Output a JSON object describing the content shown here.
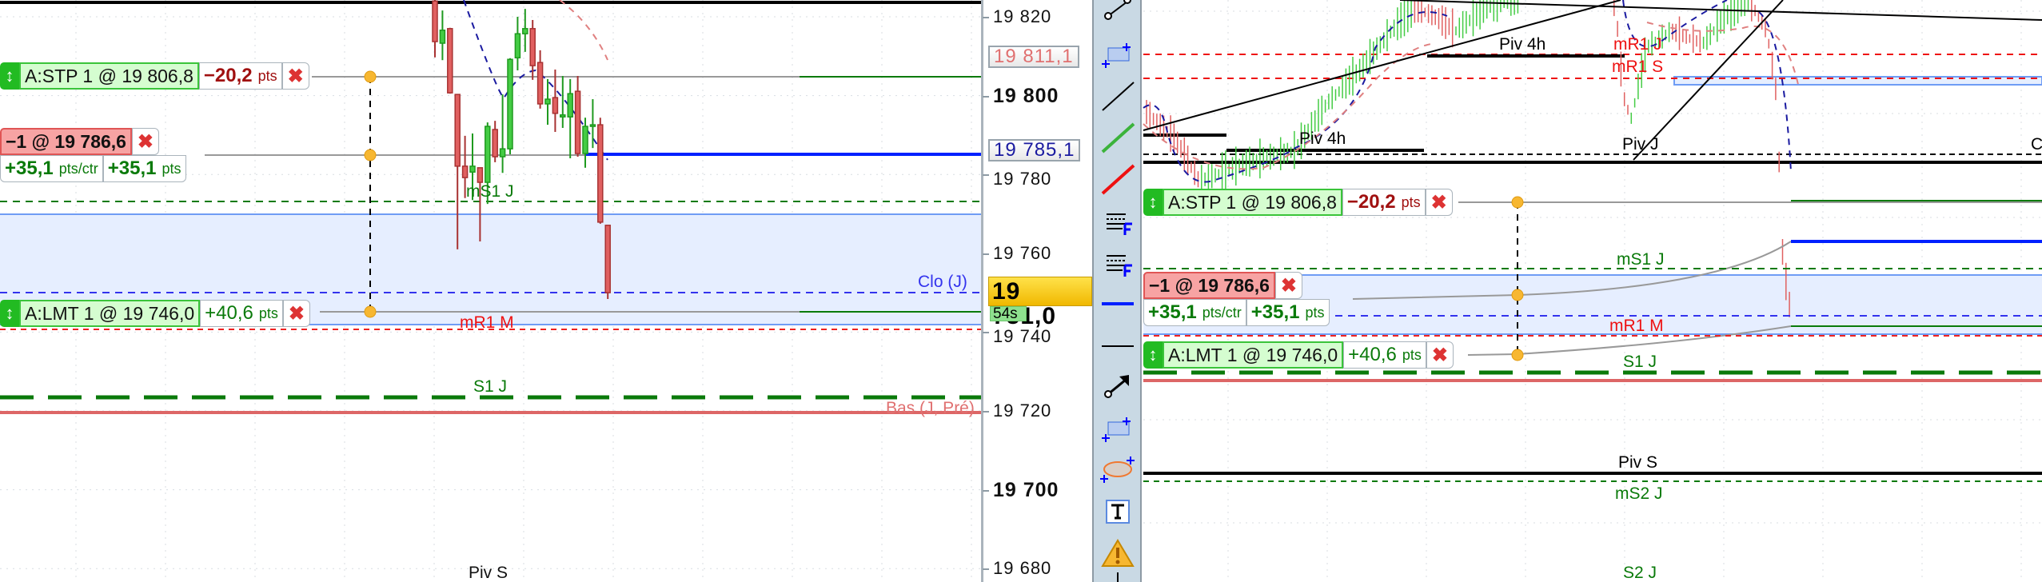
{
  "left_chart": {
    "order_stop": {
      "label": "A:STP  1  @  19 806,8",
      "pnl_value": "−20,2",
      "pnl_unit": "pts"
    },
    "position": {
      "label": "−1  @  19 786,6",
      "pnl_per_contract": "+35,1",
      "pnl_per_contract_unit": "pts/ctr",
      "pnl_total": "+35,1",
      "pnl_total_unit": "pts"
    },
    "order_limit": {
      "label": "A:LMT  1  @  19 746,0",
      "pnl_value": "+40,6",
      "pnl_unit": "pts"
    },
    "levels": {
      "ms1j": "mS1 J",
      "clo": "Clo (J)",
      "mr1m": "mR1 M",
      "s1j": "S1 J",
      "bas": "Bas (J, Pré)",
      "pivs": "Piv S"
    },
    "candles": [
      [
        19824,
        19825,
        19809.7,
        19813.7
      ],
      [
        19813.3,
        19821.6,
        19809,
        19816.6
      ],
      [
        19817,
        19817.2,
        19800.5,
        19800.7
      ],
      [
        19800.3,
        19800.3,
        19761,
        19782.1
      ],
      [
        19782.1,
        19789.8,
        19774,
        19779.2
      ],
      [
        19780.6,
        19790.4,
        19773.5,
        19782.1
      ],
      [
        19781.7,
        19781.7,
        19763,
        19778
      ],
      [
        19778,
        19793.2,
        19772.5,
        19792.2
      ],
      [
        19791.4,
        19793.6,
        19783.1,
        19784.5
      ],
      [
        19784.5,
        19800.3,
        19780.4,
        19786.5
      ],
      [
        19786.5,
        19809.5,
        19785.1,
        19809.2
      ],
      [
        19809.6,
        19820,
        19806.4,
        19815.7
      ],
      [
        19815.7,
        19822,
        19811.1,
        19817
      ],
      [
        19817,
        19819.2,
        19804,
        19807.6
      ],
      [
        19808.4,
        19811.5,
        19796.7,
        19797.9
      ],
      [
        19797.9,
        19804.2,
        19792.6,
        19799.1
      ],
      [
        19799.5,
        19806.6,
        19790.8,
        19795.5
      ],
      [
        19794.6,
        19805,
        19791.8,
        19795.1
      ],
      [
        19794.6,
        19804.2,
        19784.1,
        19800.5
      ],
      [
        19801.1,
        19805,
        19784.5,
        19785.3
      ],
      [
        19785.3,
        19794.4,
        19781.7,
        19792.2
      ],
      [
        19792.4,
        19799.1,
        19786.7,
        19792.6
      ],
      [
        19792.6,
        19794.4,
        19767.5,
        19767.9
      ],
      [
        19767.1,
        19767.1,
        19748.4,
        19750
      ]
    ]
  },
  "price_axis": {
    "ticks": [
      "19 820",
      "19 800",
      "19 780",
      "19 760",
      "19 740",
      "19 720",
      "19 700",
      "19 680"
    ],
    "marker_red": "19 811,1",
    "marker_blue": "19 785,1",
    "last_price": "19 751,0",
    "countdown": "54s"
  },
  "toolbar": {
    "tools": [
      "segment-tool-icon",
      "rectangle-tool-icon",
      "black-line-icon",
      "green-line-icon",
      "red-line-icon",
      "fibonacci-icon",
      "fibonacci-ext-icon",
      "blue-horizontal-line-icon",
      "black-horizontal-line-icon",
      "arrow-tool-icon",
      "zone-tool-icon",
      "ellipse-tool-icon",
      "text-tool-icon",
      "alert-icon"
    ]
  },
  "right_chart": {
    "order_stop": {
      "label": "A:STP  1  @  19 806,8",
      "pnl_value": "−20,2",
      "pnl_unit": "pts"
    },
    "position": {
      "label": "−1  @  19 786,6",
      "pnl_per_contract": "+35,1",
      "pnl_per_contract_unit": "pts/ctr",
      "pnl_total": "+35,1",
      "pnl_total_unit": "pts"
    },
    "order_limit": {
      "label": "A:LMT  1  @  19 746,0",
      "pnl_value": "+40,6",
      "pnl_unit": "pts"
    },
    "levels": {
      "piv4h_a": "Piv 4h",
      "piv4h_b": "Piv 4h",
      "mr1j": "mR1 J",
      "mr1s": "mR1 S",
      "pivj": "Piv J",
      "ms1j": "mS1 J",
      "mr1m": "mR1 M",
      "s1j": "S1 J",
      "pivs": "Piv S",
      "ms2j": "mS2 J",
      "s2j": "S2 J",
      "edge_c": "C"
    }
  },
  "colors": {
    "up": "#22aa22",
    "down": "#d04848",
    "zone": "#e6eeff",
    "accent_blue": "#0020ff",
    "last_price_bg": "#f5c400"
  }
}
